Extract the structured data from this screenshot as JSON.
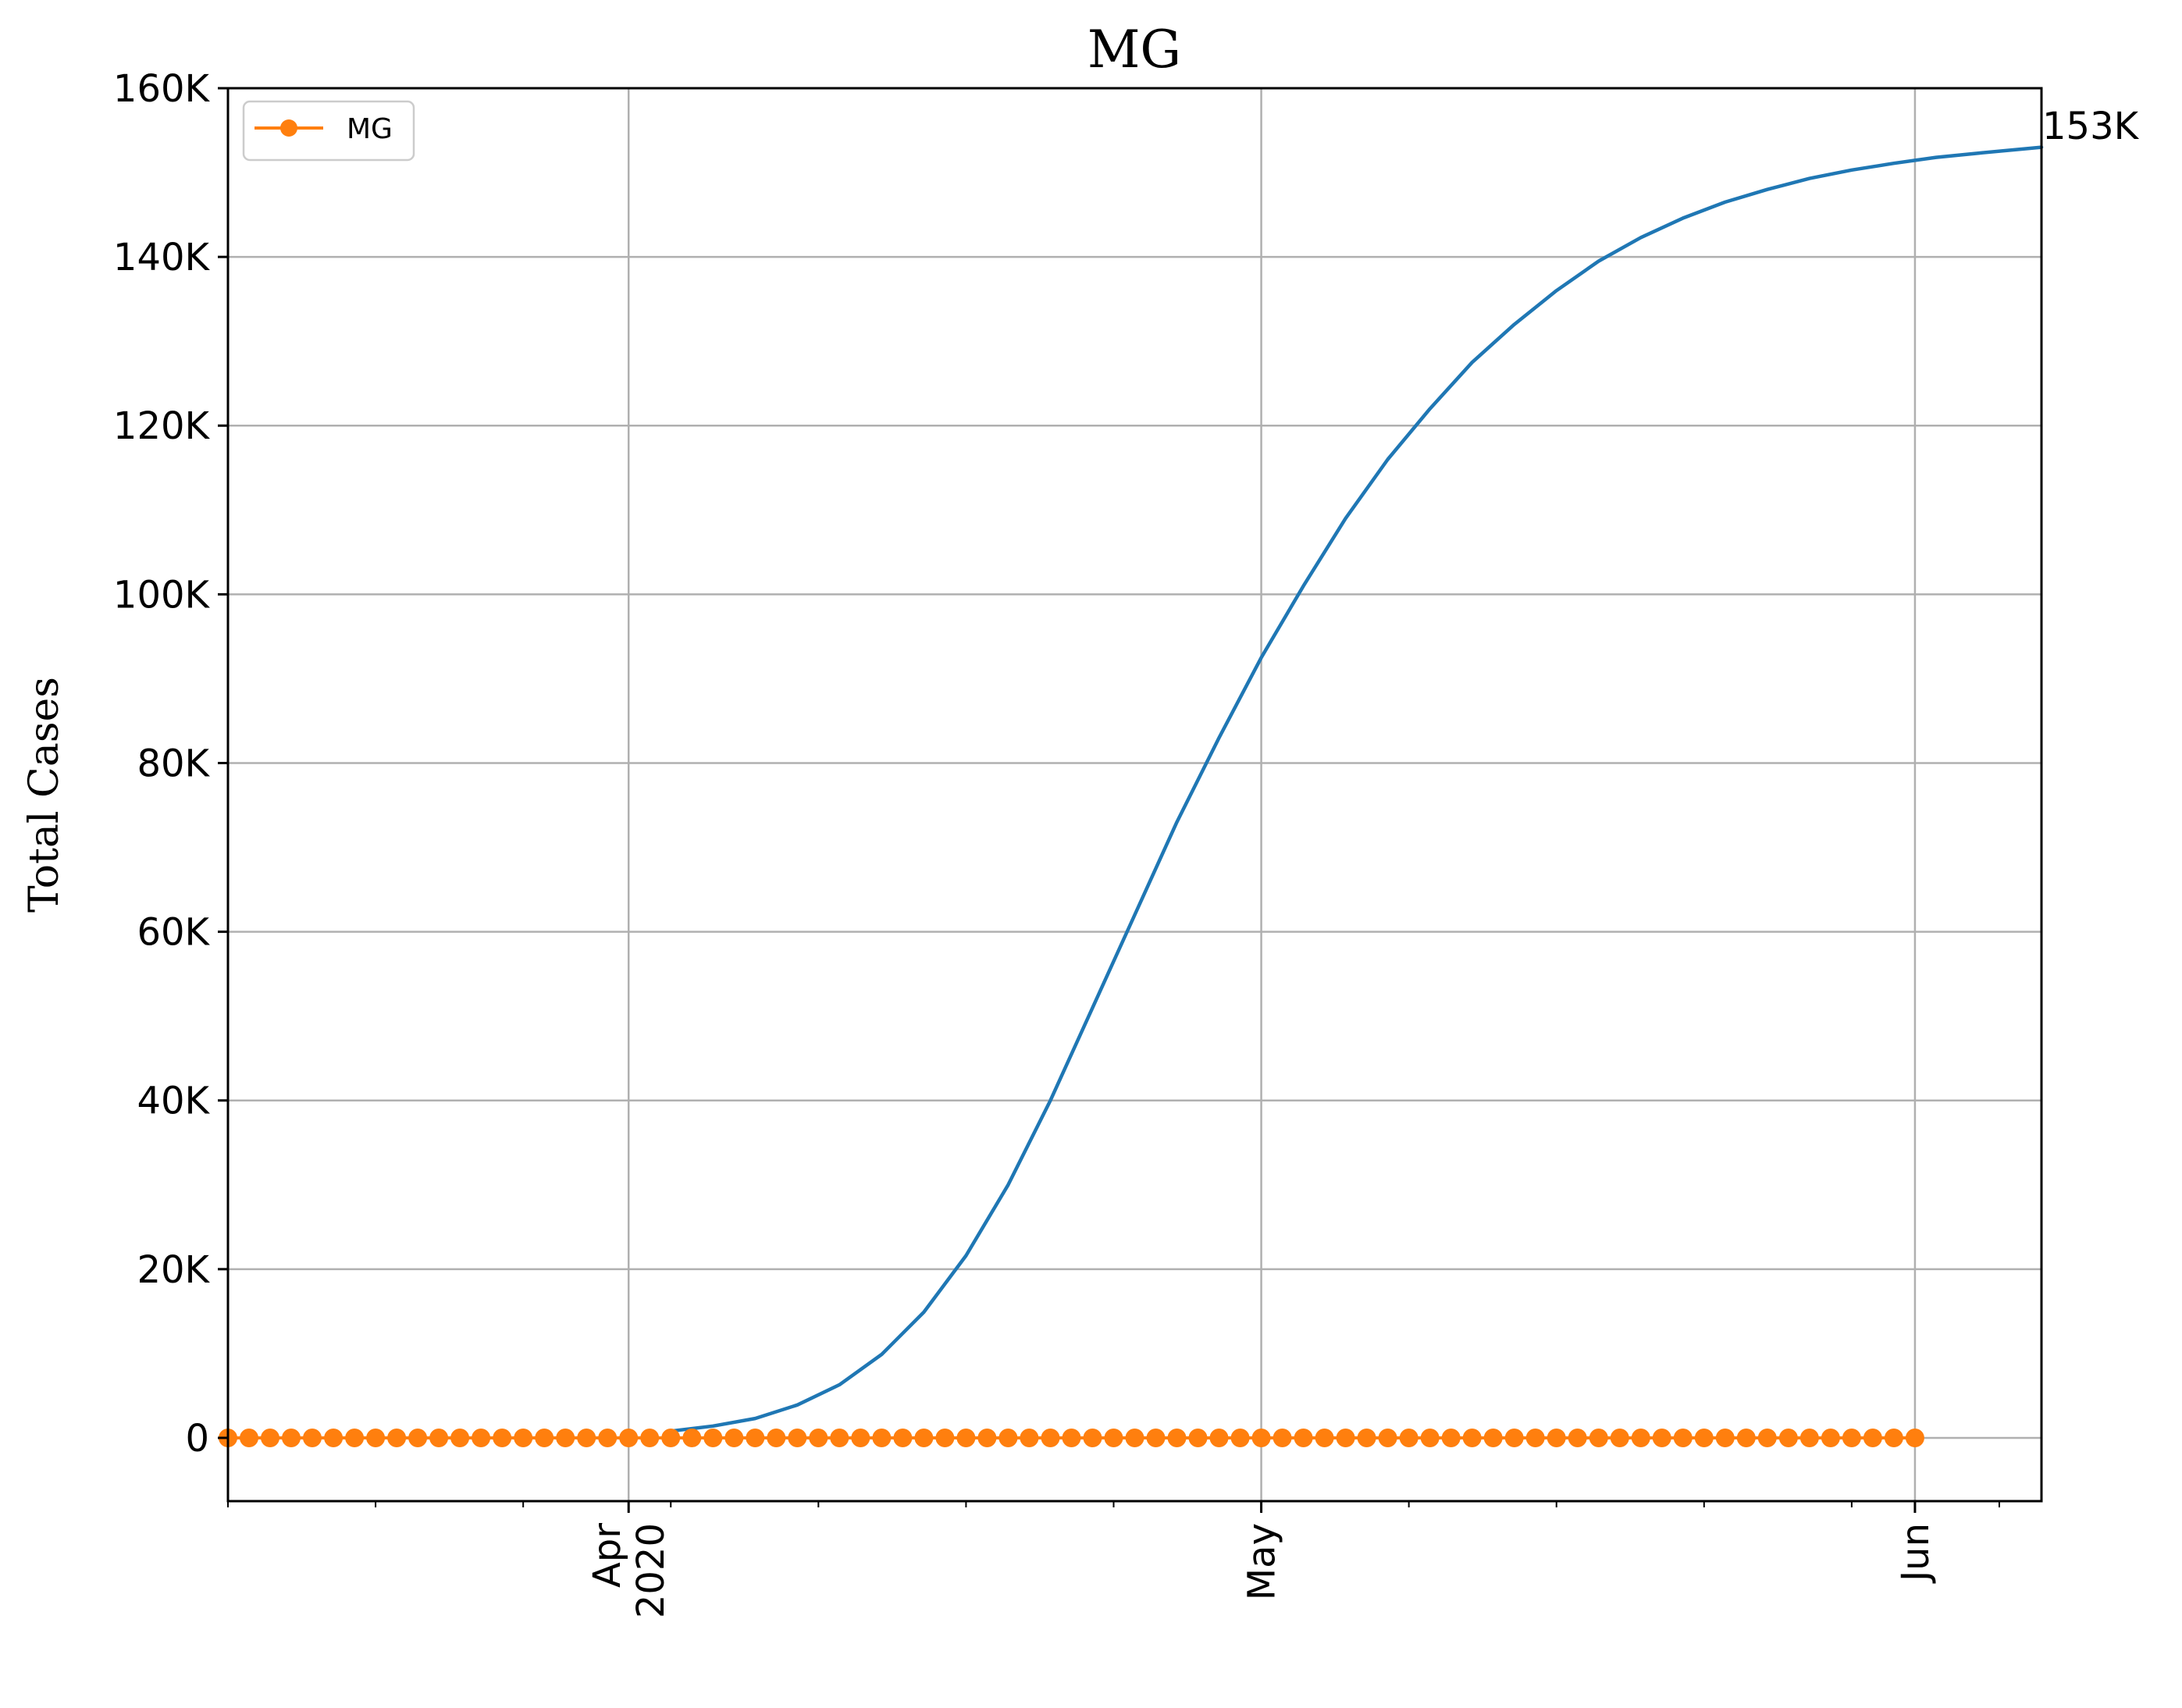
{
  "chart_data": {
    "type": "line",
    "title": "MG",
    "xlabel": "",
    "ylabel": "Total Cases",
    "x_range": [
      "2020-03-13",
      "2020-06-07"
    ],
    "ylim": [
      -7500,
      160000
    ],
    "y_ticks": [
      {
        "value": 0,
        "label": "0"
      },
      {
        "value": 20000,
        "label": "20K"
      },
      {
        "value": 40000,
        "label": "40K"
      },
      {
        "value": 60000,
        "label": "60K"
      },
      {
        "value": 80000,
        "label": "80K"
      },
      {
        "value": 100000,
        "label": "100K"
      },
      {
        "value": 120000,
        "label": "120K"
      },
      {
        "value": 140000,
        "label": "140K"
      },
      {
        "value": 160000,
        "label": "160K"
      }
    ],
    "x_ticks": [
      {
        "date": "2020-04-01",
        "label": [
          "Apr",
          "2020"
        ]
      },
      {
        "date": "2020-05-01",
        "label": [
          "May"
        ]
      },
      {
        "date": "2020-06-01",
        "label": [
          "Jun"
        ]
      }
    ],
    "grid": true,
    "legend": {
      "position": "top-left",
      "entries": [
        "MG"
      ]
    },
    "series": [
      {
        "kind": "fitted-curve",
        "color": "#1f77b4",
        "start_date": "2020-04-03",
        "x": [
          "2020-04-03",
          "2020-04-05",
          "2020-04-07",
          "2020-04-09",
          "2020-04-11",
          "2020-04-13",
          "2020-04-15",
          "2020-04-17",
          "2020-04-19",
          "2020-04-21",
          "2020-04-23",
          "2020-04-25",
          "2020-04-27",
          "2020-04-29",
          "2020-05-01",
          "2020-05-03",
          "2020-05-05",
          "2020-05-07",
          "2020-05-09",
          "2020-05-11",
          "2020-05-13",
          "2020-05-15",
          "2020-05-17",
          "2020-05-19",
          "2020-05-21",
          "2020-05-23",
          "2020-05-25",
          "2020-05-27",
          "2020-05-29",
          "2020-05-31",
          "2020-06-02",
          "2020-06-04",
          "2020-06-07"
        ],
        "y": [
          800,
          1400,
          2300,
          3900,
          6300,
          9900,
          14900,
          21600,
          30000,
          40000,
          51000,
          62000,
          73000,
          83000,
          92500,
          101000,
          109000,
          116000,
          122000,
          127500,
          132000,
          136000,
          139500,
          142300,
          144600,
          146500,
          148000,
          149300,
          150300,
          151100,
          151800,
          152300,
          153000
        ]
      },
      {
        "name": "MG",
        "kind": "observed",
        "color": "#ff7f0e",
        "start_date": "2020-03-13",
        "end_date": "2020-06-01",
        "values": [
          0,
          0,
          0,
          0,
          0,
          0,
          0,
          0,
          0,
          0,
          0,
          0,
          0,
          0,
          0,
          0,
          0,
          0,
          0,
          0,
          0,
          0,
          0,
          0,
          0,
          0,
          0,
          0,
          0,
          0,
          0,
          0,
          0,
          0,
          0,
          0,
          0,
          0,
          0,
          0,
          0,
          0,
          0,
          0,
          0,
          0,
          0,
          0,
          0,
          0,
          0,
          0,
          0,
          0,
          0,
          0,
          0,
          0,
          0,
          0,
          0,
          0,
          0,
          0,
          0,
          0,
          0,
          0,
          0,
          0,
          0,
          0,
          0,
          0,
          0,
          0,
          0,
          0,
          0,
          0,
          0
        ]
      }
    ],
    "annotations": [
      {
        "text": "153K",
        "date": "2020-06-07",
        "value": 153000
      }
    ]
  }
}
